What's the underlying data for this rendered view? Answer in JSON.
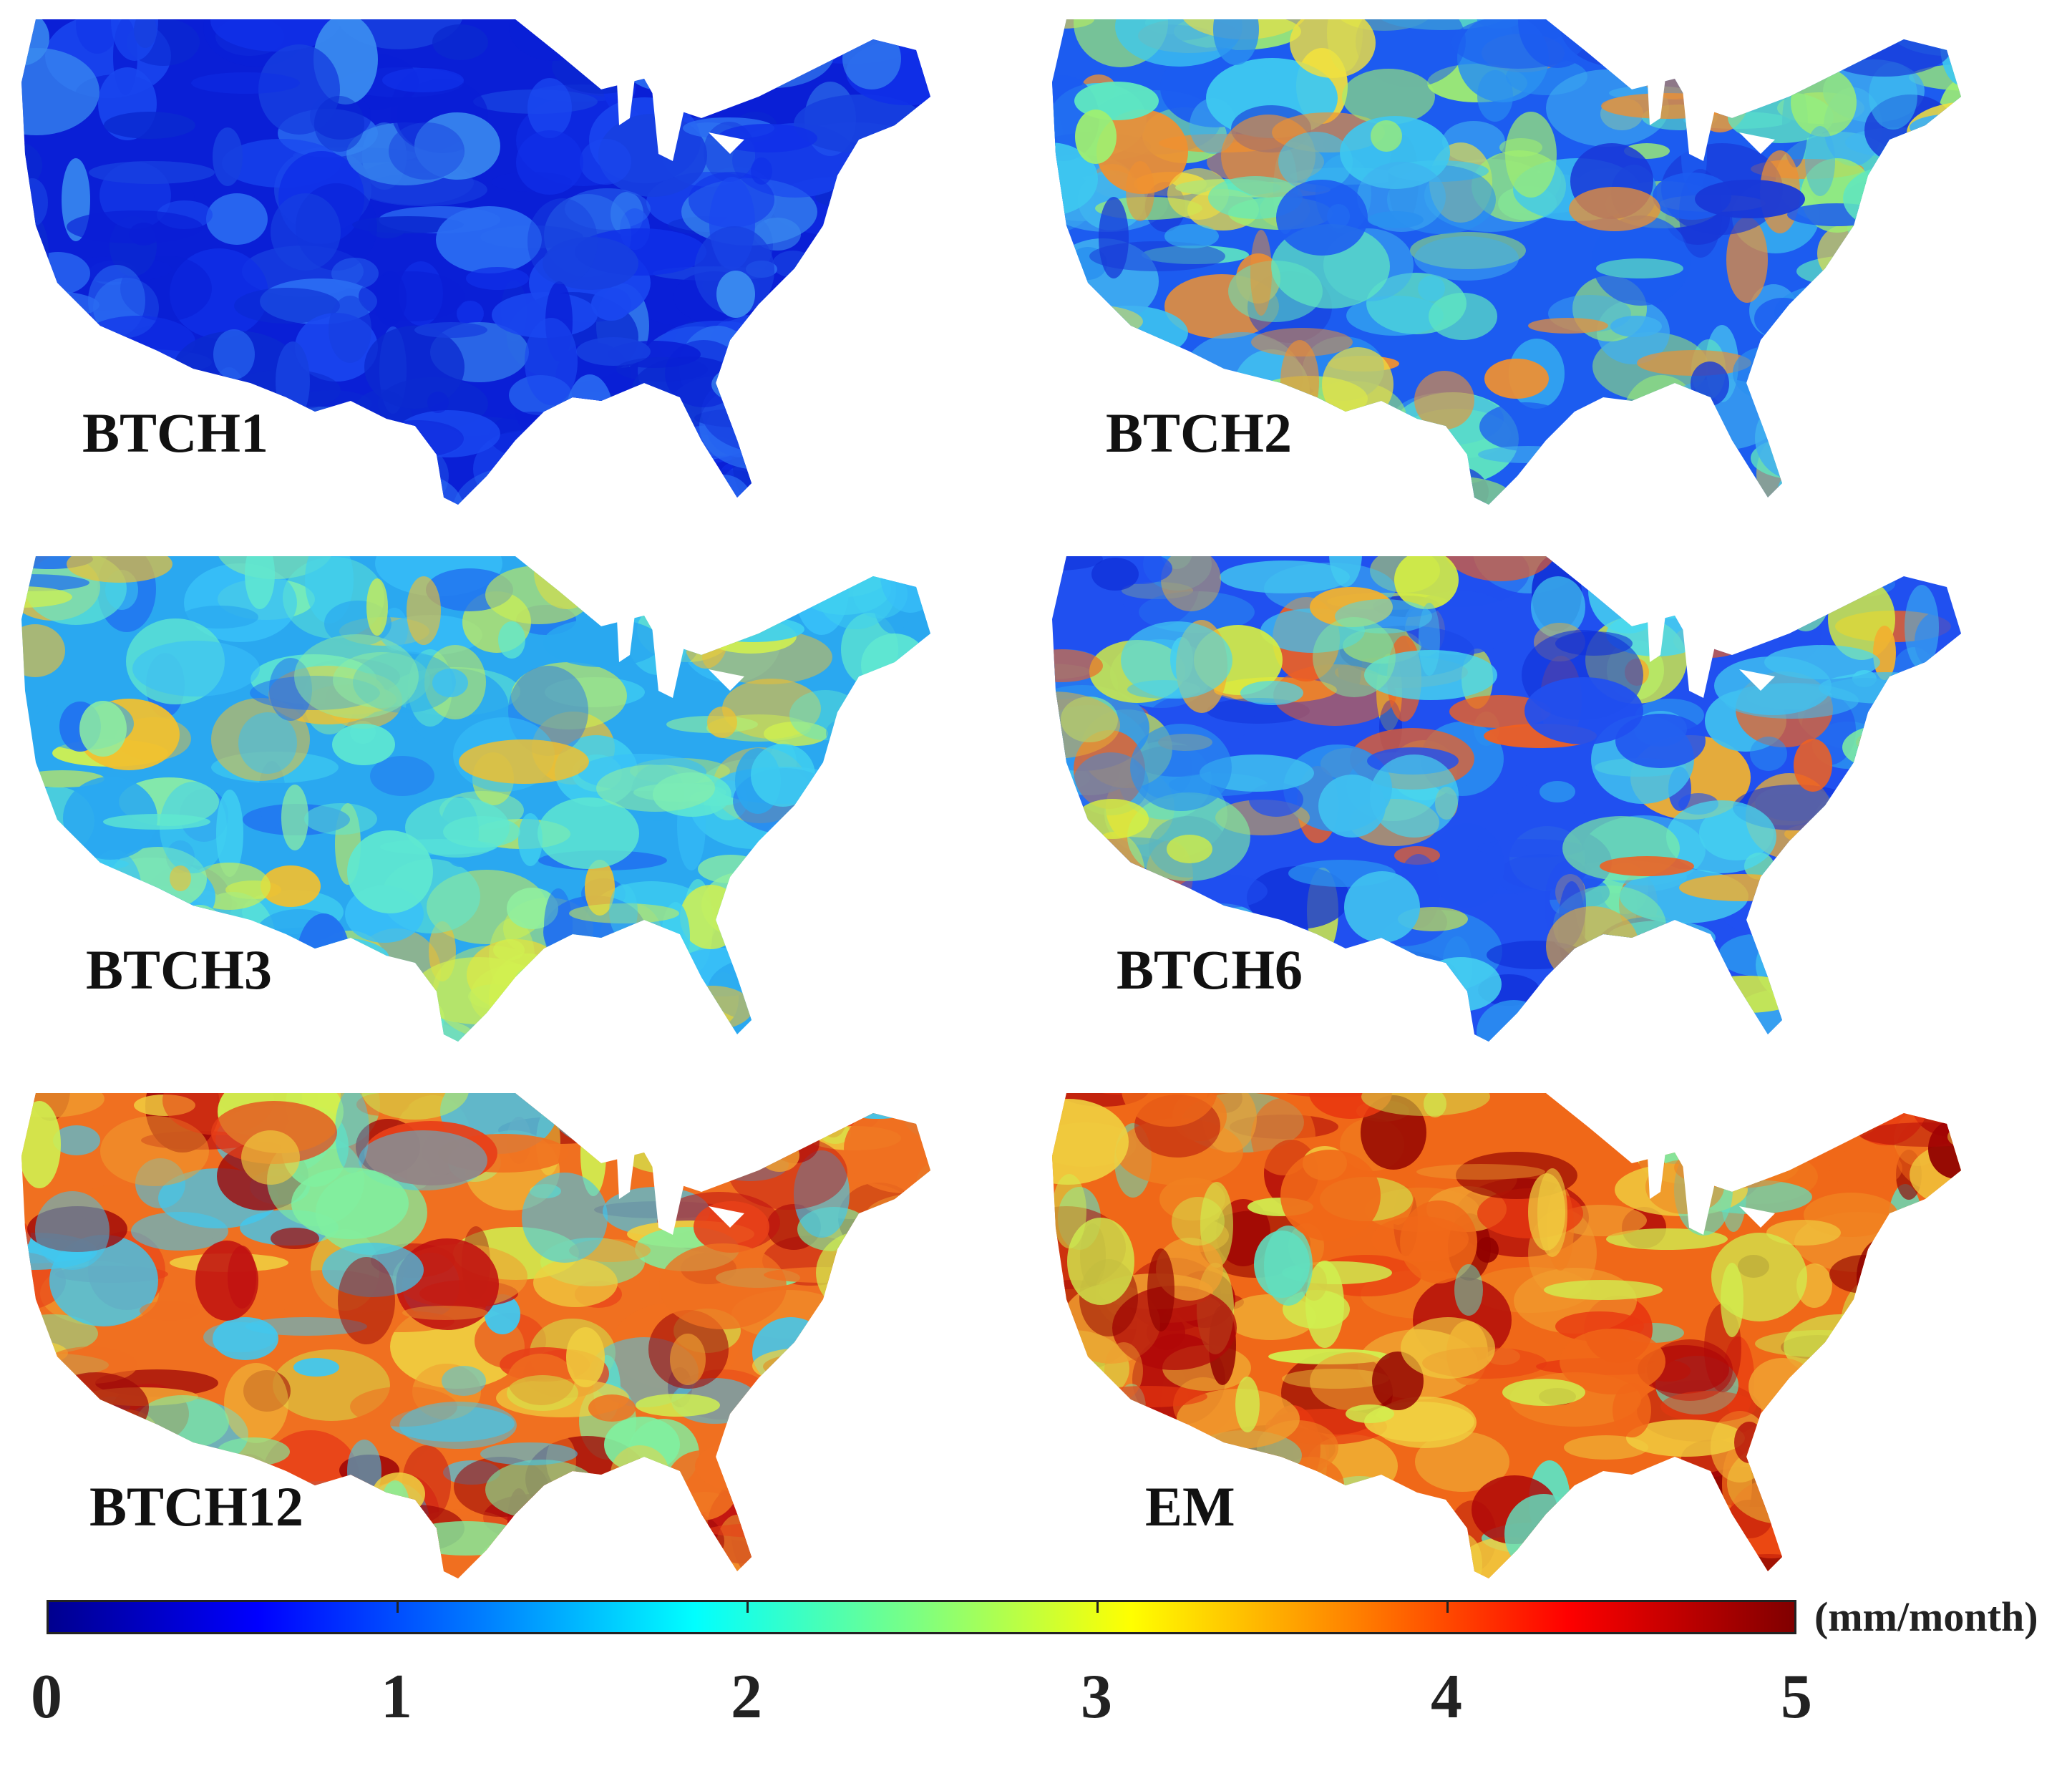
{
  "panels": [
    {
      "label": "BTCH1",
      "palette": [
        "#0a1fd6",
        "#1030e8",
        "#1a48f0",
        "#0b2ad0",
        "#2a6cf2",
        "#1740e0",
        "#3a8cf0"
      ]
    },
    {
      "label": "BTCH2",
      "palette": [
        "#1c5cf0",
        "#2a90f0",
        "#3ec8f0",
        "#60e8c0",
        "#a0f070",
        "#f0e040",
        "#f09030",
        "#1838d8",
        "#40b0f0"
      ]
    },
    {
      "label": "BTCH3",
      "palette": [
        "#2aa8f0",
        "#40d0f0",
        "#60e8d0",
        "#90f0a0",
        "#d0f050",
        "#f0c030",
        "#2070f0",
        "#38c0f8"
      ]
    },
    {
      "label": "BTCH6",
      "palette": [
        "#2050f0",
        "#2a90f0",
        "#48d8f0",
        "#80f0a0",
        "#d8f040",
        "#f0b030",
        "#f06020",
        "#1030d8",
        "#40c0f0"
      ]
    },
    {
      "label": "BTCH12",
      "palette": [
        "#f07020",
        "#f0a030",
        "#e84018",
        "#a00808",
        "#d0f050",
        "#80f0a0",
        "#40c8f0",
        "#f0d040",
        "#c01010"
      ]
    },
    {
      "label": "EM",
      "palette": [
        "#f06818",
        "#e83810",
        "#b00808",
        "#f0a030",
        "#f0d040",
        "#d0f050",
        "#60e0c0",
        "#f08020",
        "#900000"
      ]
    }
  ],
  "colorbar": {
    "min": 0,
    "max": 5,
    "ticks": [
      "0",
      "1",
      "2",
      "3",
      "4",
      "5"
    ],
    "unit": "(mm/month)"
  }
}
